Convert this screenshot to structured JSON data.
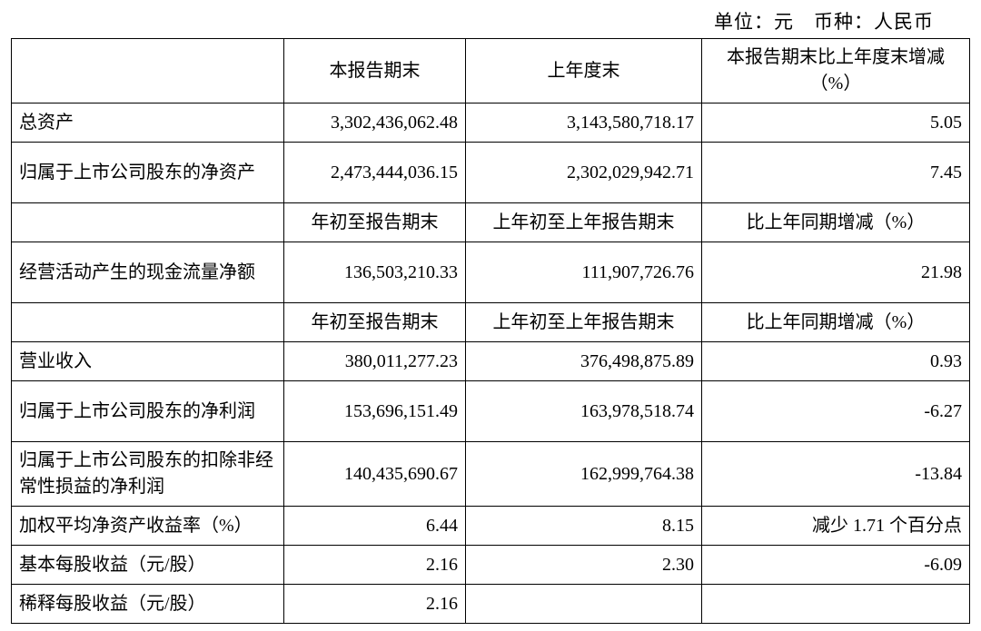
{
  "unit_line": "单位：元　币种：人民币",
  "headers": {
    "blank": "",
    "period_end": "本报告期末",
    "prev_year_end": "上年度末",
    "pct_change_year": "本报告期末比上年度末增减（%）",
    "ytd": "年初至报告期末",
    "prev_ytd": "上年初至上年报告期末",
    "yoy_change": "比上年同期增减（%）"
  },
  "rows": {
    "total_assets": {
      "label": "总资产",
      "v1": "3,302,436,062.48",
      "v2": "3,143,580,718.17",
      "v3": "5.05"
    },
    "net_assets": {
      "label": "归属于上市公司股东的净资产",
      "v1": "2,473,444,036.15",
      "v2": "2,302,029,942.71",
      "v3": "7.45"
    },
    "op_cashflow": {
      "label": "经营活动产生的现金流量净额",
      "v1": "136,503,210.33",
      "v2": "111,907,726.76",
      "v3": "21.98"
    },
    "revenue": {
      "label": "营业收入",
      "v1": "380,011,277.23",
      "v2": "376,498,875.89",
      "v3": "0.93"
    },
    "net_profit": {
      "label": "归属于上市公司股东的净利润",
      "v1": "153,696,151.49",
      "v2": "163,978,518.74",
      "v3": "-6.27"
    },
    "net_profit_ex": {
      "label": "归属于上市公司股东的扣除非经常性损益的净利润",
      "v1": "140,435,690.67",
      "v2": "162,999,764.38",
      "v3": "-13.84"
    },
    "roe": {
      "label": "加权平均净资产收益率（%）",
      "v1": "6.44",
      "v2": "8.15",
      "v3": "减少 1.71 个百分点"
    },
    "eps_basic": {
      "label": "基本每股收益（元/股）",
      "v1": "2.16",
      "v2": "2.30",
      "v3": "-6.09"
    },
    "eps_diluted": {
      "label": "稀释每股收益（元/股）",
      "v1": "2.16",
      "v2": "",
      "v3": ""
    }
  },
  "style": {
    "font_family": "SimSun",
    "font_size_pt": 15,
    "border_color": "#000000",
    "text_color": "#000000",
    "background": "#ffffff"
  }
}
